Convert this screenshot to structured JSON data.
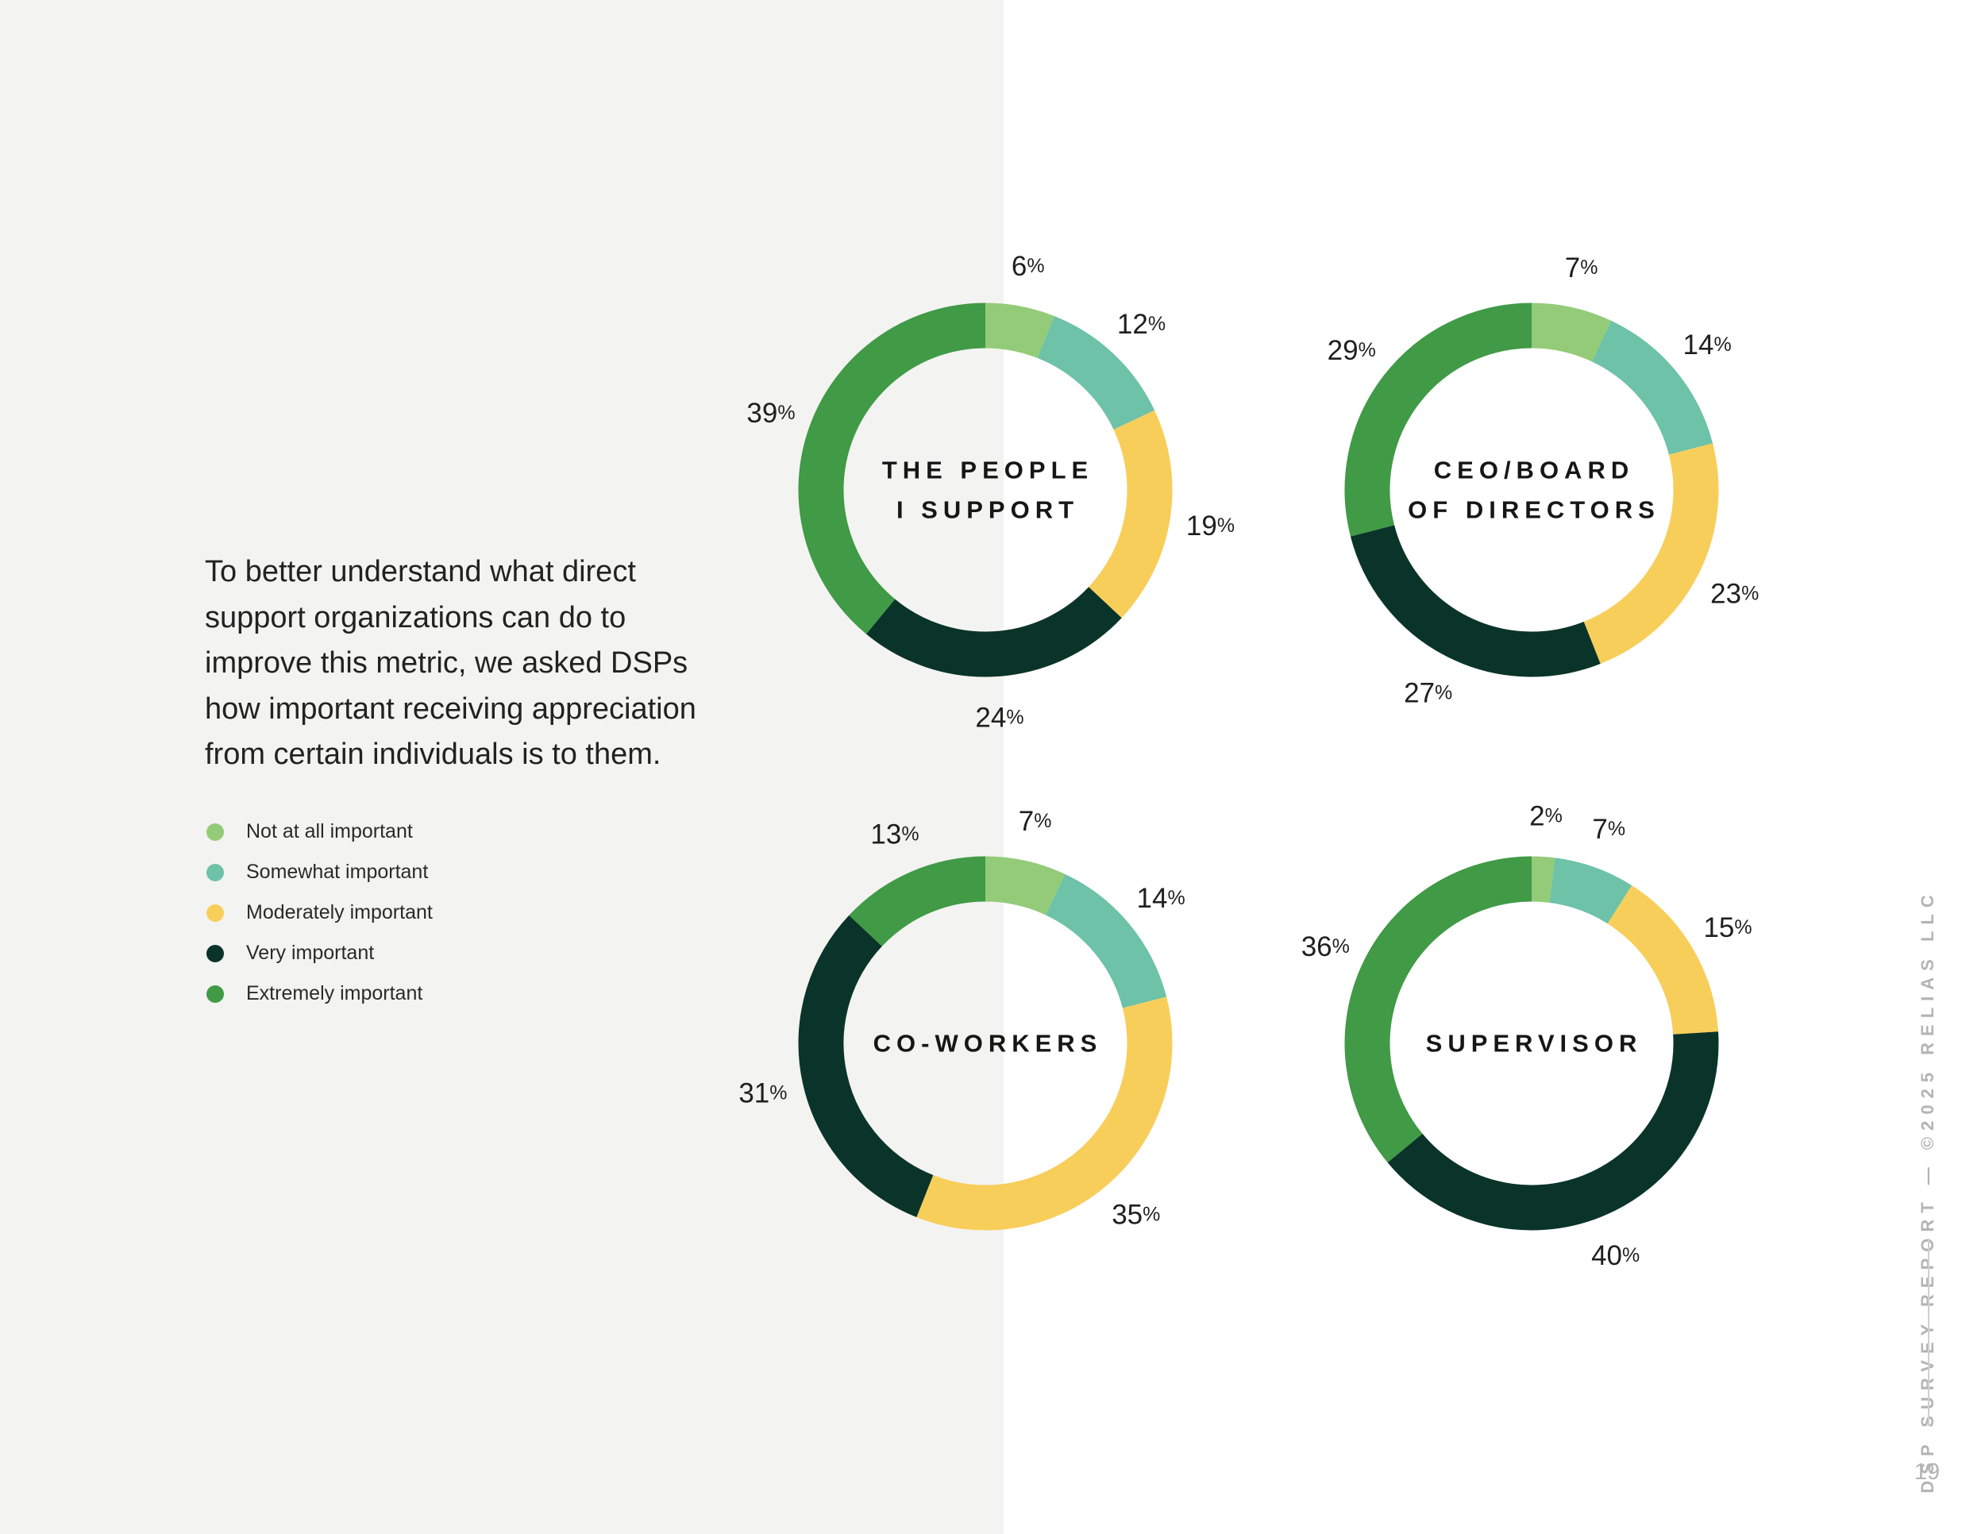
{
  "intro_text": "To better understand what direct support organizations can do to improve this metric, we asked DSPs how important receiving appreciation from certain individuals is to them.",
  "legend": [
    {
      "label": "Not at all important",
      "color": "#93cb78"
    },
    {
      "label": "Somewhat important",
      "color": "#6dc2a7"
    },
    {
      "label": "Moderately important",
      "color": "#f8ce5a"
    },
    {
      "label": "Very important",
      "color": "#0a3429"
    },
    {
      "label": "Extremely important",
      "color": "#409a46"
    }
  ],
  "chart_data": [
    {
      "type": "pie",
      "title": "THE PEOPLE I SUPPORT",
      "title_lines": [
        "THE PEOPLE",
        "I SUPPORT"
      ],
      "categories": [
        "Not at all important",
        "Somewhat important",
        "Moderately important",
        "Very important",
        "Extremely important"
      ],
      "values": [
        6,
        12,
        19,
        24,
        39
      ],
      "labels": [
        "6",
        "12",
        "19",
        "24",
        "39"
      ]
    },
    {
      "type": "pie",
      "title": "CEO/BOARD OF DIRECTORS",
      "title_lines": [
        "CEO/BOARD",
        "OF DIRECTORS"
      ],
      "categories": [
        "Not at all important",
        "Somewhat important",
        "Moderately important",
        "Very important",
        "Extremely important"
      ],
      "values": [
        7,
        14,
        23,
        27,
        29
      ],
      "labels": [
        "7",
        "14",
        "23",
        "27",
        "29"
      ]
    },
    {
      "type": "pie",
      "title": "CO-WORKERS",
      "title_lines": [
        "CO-WORKERS"
      ],
      "categories": [
        "Not at all important",
        "Somewhat important",
        "Moderately important",
        "Very important",
        "Extremely important"
      ],
      "values": [
        7,
        14,
        35,
        31,
        13
      ],
      "labels": [
        "7",
        "14",
        "35",
        "31",
        "13"
      ]
    },
    {
      "type": "pie",
      "title": "SUPERVISOR",
      "title_lines": [
        "SUPERVISOR"
      ],
      "categories": [
        "Not at all important",
        "Somewhat important",
        "Moderately important",
        "Very important",
        "Extremely important"
      ],
      "values": [
        2,
        7,
        15,
        40,
        36
      ],
      "labels": [
        "2",
        "7",
        "15",
        "40",
        "36"
      ]
    }
  ],
  "percent_sign": "%",
  "footer": {
    "side_text": "DSP SURVEY REPORT — ©2025 RELIAS LLC",
    "page_number": "19"
  }
}
